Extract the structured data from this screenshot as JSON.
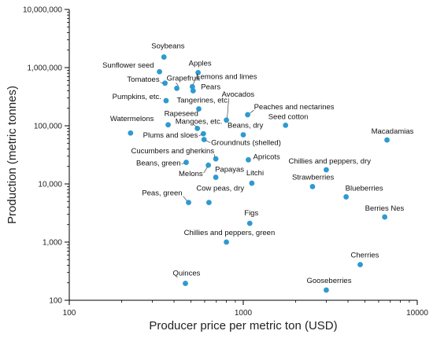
{
  "chart_data": {
    "type": "scatter",
    "title": "",
    "xlabel": "Producer price per metric ton (USD)",
    "ylabel": "Production (metric tonnes)",
    "xscale": "log",
    "yscale": "log",
    "xlim": [
      100,
      10000
    ],
    "ylim": [
      100,
      10000000
    ],
    "x_ticks": [
      100,
      1000,
      10000
    ],
    "x_tick_labels": [
      "100",
      "1000",
      "10000"
    ],
    "y_ticks": [
      100,
      1000,
      10000,
      100000,
      1000000,
      10000000
    ],
    "y_tick_labels": [
      "100",
      "1,000",
      "10,000",
      "100,000",
      "1,000,000",
      "10,000,000"
    ],
    "grid": false,
    "legend": "none",
    "marker_color": "#2e9ad0",
    "points": [
      {
        "label": "Soybeans",
        "x": 350,
        "y": 1520000
      },
      {
        "label": "Sunflower seed",
        "x": 330,
        "y": 850000
      },
      {
        "label": "Apples",
        "x": 550,
        "y": 820000
      },
      {
        "label": "Tomatoes",
        "x": 355,
        "y": 540000
      },
      {
        "label": "Grapefruit",
        "x": 415,
        "y": 440000
      },
      {
        "label": "Lemons and limes",
        "x": 510,
        "y": 470000
      },
      {
        "label": "Pears",
        "x": 515,
        "y": 400000
      },
      {
        "label": "Pumpkins, etc.",
        "x": 360,
        "y": 270000
      },
      {
        "label": "Tangerines, etc.",
        "x": 555,
        "y": 195000
      },
      {
        "label": "Avocados",
        "x": 800,
        "y": 125000
      },
      {
        "label": "Peaches and nectarines",
        "x": 1060,
        "y": 155000
      },
      {
        "label": "Seed cotton",
        "x": 1750,
        "y": 102000
      },
      {
        "label": "Rapeseed",
        "x": 370,
        "y": 104000
      },
      {
        "label": "Mangoes, etc.",
        "x": 545,
        "y": 90000
      },
      {
        "label": "Watermelons",
        "x": 225,
        "y": 75000
      },
      {
        "label": "Beans, dry",
        "x": 1000,
        "y": 70000
      },
      {
        "label": "Plums and sloes",
        "x": 590,
        "y": 73000
      },
      {
        "label": "Groundnuts (shelled)",
        "x": 595,
        "y": 58000
      },
      {
        "label": "Macadamias",
        "x": 6700,
        "y": 57000
      },
      {
        "label": "Cucumbers and gherkins",
        "x": 695,
        "y": 27000
      },
      {
        "label": "Apricots",
        "x": 1070,
        "y": 26000
      },
      {
        "label": "Beans, green",
        "x": 470,
        "y": 23500
      },
      {
        "label": "Melons",
        "x": 630,
        "y": 21000
      },
      {
        "label": "Chillies and peppers, dry",
        "x": 3000,
        "y": 17500
      },
      {
        "label": "Papayas",
        "x": 695,
        "y": 13000
      },
      {
        "label": "Litchi",
        "x": 1120,
        "y": 10300
      },
      {
        "label": "Strawberries",
        "x": 2500,
        "y": 9000
      },
      {
        "label": "Blueberries",
        "x": 3900,
        "y": 6000
      },
      {
        "label": "Peas, green",
        "x": 485,
        "y": 4800
      },
      {
        "label": "Cow peas, dry",
        "x": 635,
        "y": 4800
      },
      {
        "label": "Berries Nes",
        "x": 6500,
        "y": 2700
      },
      {
        "label": "Figs",
        "x": 1090,
        "y": 2100
      },
      {
        "label": "Chillies and peppers, green",
        "x": 800,
        "y": 1000
      },
      {
        "label": "Cherries",
        "x": 4700,
        "y": 410
      },
      {
        "label": "Quinces",
        "x": 465,
        "y": 195
      },
      {
        "label": "Gooseberries",
        "x": 3000,
        "y": 150
      }
    ]
  }
}
